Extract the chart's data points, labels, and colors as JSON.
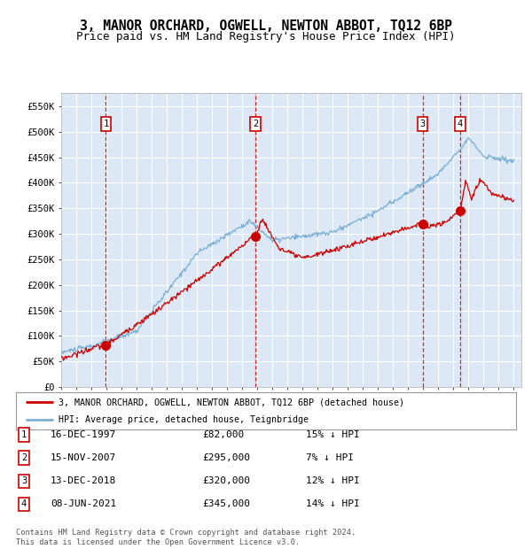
{
  "title": "3, MANOR ORCHARD, OGWELL, NEWTON ABBOT, TQ12 6BP",
  "subtitle": "Price paid vs. HM Land Registry's House Price Index (HPI)",
  "title_fontsize": 10.5,
  "subtitle_fontsize": 9,
  "bg_color": "#dce8f5",
  "grid_color": "#ffffff",
  "y_ticks": [
    0,
    50000,
    100000,
    150000,
    200000,
    250000,
    300000,
    350000,
    400000,
    450000,
    500000,
    550000
  ],
  "y_tick_labels": [
    "£0",
    "£50K",
    "£100K",
    "£150K",
    "£200K",
    "£250K",
    "£300K",
    "£350K",
    "£400K",
    "£450K",
    "£500K",
    "£550K"
  ],
  "ylim": [
    0,
    575000
  ],
  "sale_dates_num": [
    1997.96,
    2007.88,
    2018.96,
    2021.44
  ],
  "sale_prices": [
    82000,
    295000,
    320000,
    345000
  ],
  "sale_labels": [
    "1",
    "2",
    "3",
    "4"
  ],
  "red_line_color": "#cc0000",
  "blue_line_color": "#7bafd4",
  "marker_color": "#cc0000",
  "vline_color": "#dd0000",
  "legend_label_red": "3, MANOR ORCHARD, OGWELL, NEWTON ABBOT, TQ12 6BP (detached house)",
  "legend_label_blue": "HPI: Average price, detached house, Teignbridge",
  "table_data": [
    [
      "1",
      "16-DEC-1997",
      "£82,000",
      "15% ↓ HPI"
    ],
    [
      "2",
      "15-NOV-2007",
      "£295,000",
      "7% ↓ HPI"
    ],
    [
      "3",
      "13-DEC-2018",
      "£320,000",
      "12% ↓ HPI"
    ],
    [
      "4",
      "08-JUN-2021",
      "£345,000",
      "14% ↓ HPI"
    ]
  ],
  "footer_text": "Contains HM Land Registry data © Crown copyright and database right 2024.\nThis data is licensed under the Open Government Licence v3.0.",
  "font_family": "DejaVu Sans Mono"
}
